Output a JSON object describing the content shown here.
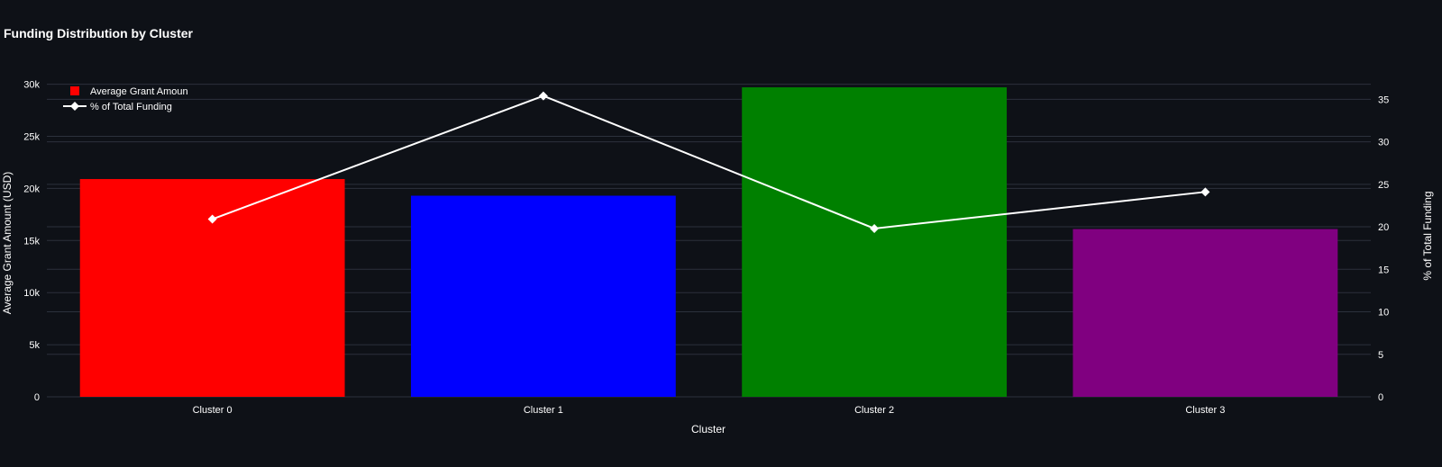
{
  "chart_data": {
    "type": "bar",
    "title": "Funding Distribution by Cluster",
    "xlabel": "Cluster",
    "ylabel": "Average Grant Amount (USD)",
    "y2label": "% of Total Funding",
    "categories": [
      "Cluster 0",
      "Cluster 1",
      "Cluster 2",
      "Cluster 3"
    ],
    "ylim": [
      0,
      31000
    ],
    "y2lim": [
      0,
      38
    ],
    "yticks": [
      0,
      5000,
      10000,
      15000,
      20000,
      25000,
      30000
    ],
    "ytick_labels": [
      "0",
      "5k",
      "10k",
      "15k",
      "20k",
      "25k",
      "30k"
    ],
    "y2ticks": [
      0,
      5,
      10,
      15,
      20,
      25,
      30,
      35
    ],
    "y2tick_labels": [
      "0",
      "5",
      "10",
      "15",
      "20",
      "25",
      "30",
      "35"
    ],
    "grid": true,
    "legend_position": "top-left",
    "series": [
      {
        "name": "Average Grant Amoun",
        "type": "bar",
        "axis": "left",
        "values": [
          20900,
          19300,
          29700,
          16100
        ],
        "colors": [
          "#ff0000",
          "#0000ff",
          "#008000",
          "#800080"
        ]
      },
      {
        "name": "% of Total Funding",
        "type": "line",
        "axis": "right",
        "marker": "diamond",
        "color": "#ffffff",
        "values": [
          20.9,
          35.4,
          19.8,
          24.1
        ]
      }
    ]
  }
}
